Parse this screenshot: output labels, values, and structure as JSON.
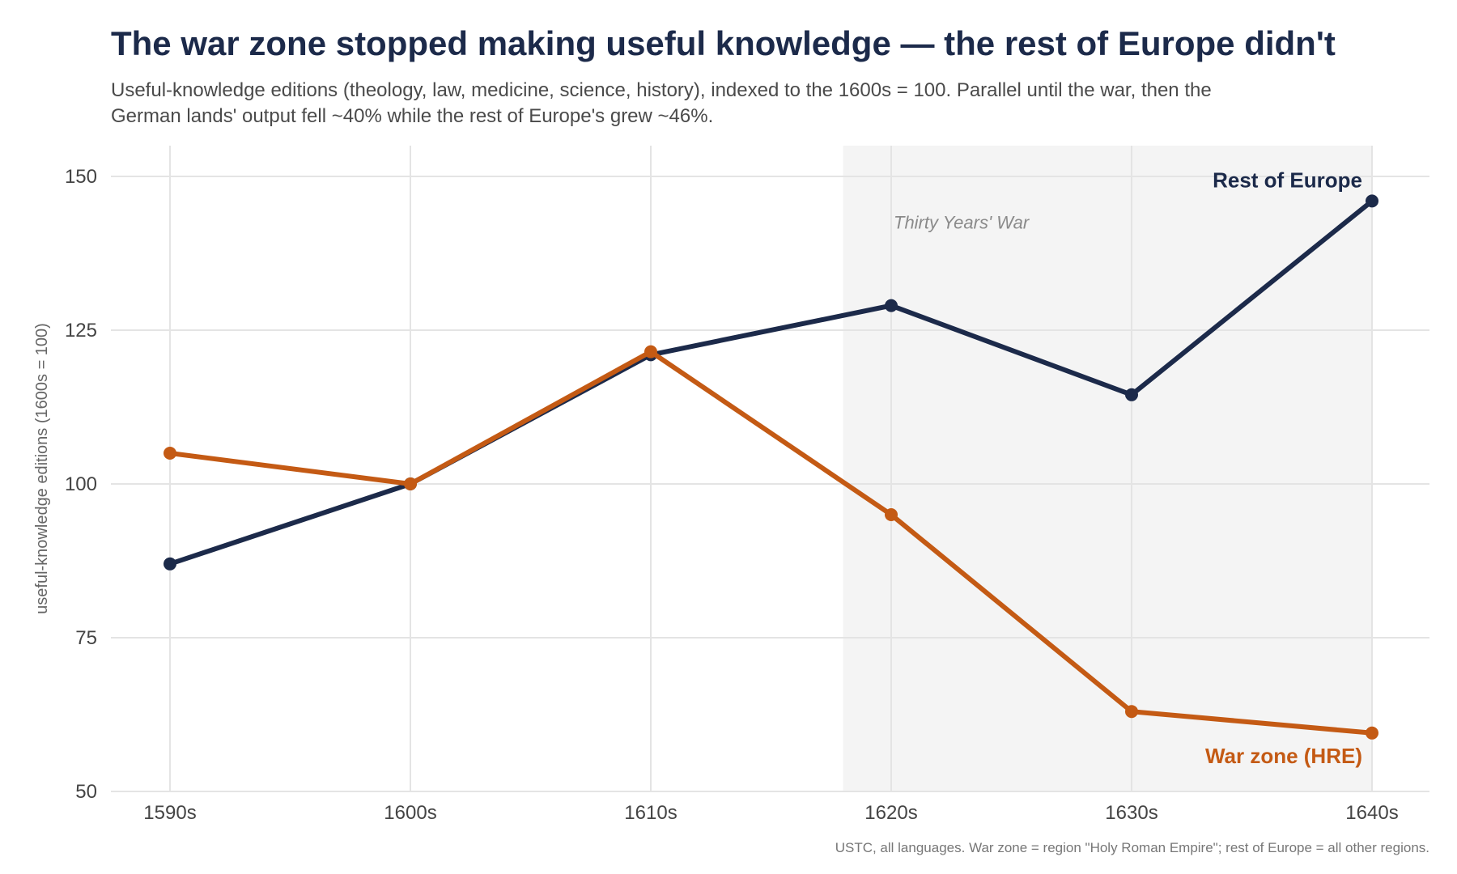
{
  "chart_data": {
    "type": "line",
    "title": "The war zone stopped making useful knowledge — the rest of Europe didn't",
    "subtitle": "Useful-knowledge editions (theology, law, medicine, science, history), indexed to the 1600s = 100. Parallel until the war, then the German lands' output fell ~40% while the rest of Europe's grew ~46%.",
    "caption": "USTC, all languages. War zone = region \"Holy Roman Empire\"; rest of Europe = all other regions.",
    "xlabel": "",
    "ylabel": "useful-knowledge editions (1600s = 100)",
    "categories": [
      "1590s",
      "1600s",
      "1610s",
      "1620s",
      "1630s",
      "1640s"
    ],
    "yticks": [
      50,
      75,
      100,
      125,
      150
    ],
    "ylim": [
      50,
      155
    ],
    "grid": true,
    "shaded_region": {
      "from": "1620s",
      "to": "1640s",
      "label": "Thirty Years' War",
      "color": "#f4f4f4"
    },
    "series": [
      {
        "name": "Rest of Europe",
        "color": "#1c2a4a",
        "values": [
          87,
          100,
          121,
          129,
          114.5,
          146
        ]
      },
      {
        "name": "War zone (HRE)",
        "color": "#c45a14",
        "values": [
          105,
          100,
          121.5,
          95,
          63,
          59.5
        ]
      }
    ]
  }
}
